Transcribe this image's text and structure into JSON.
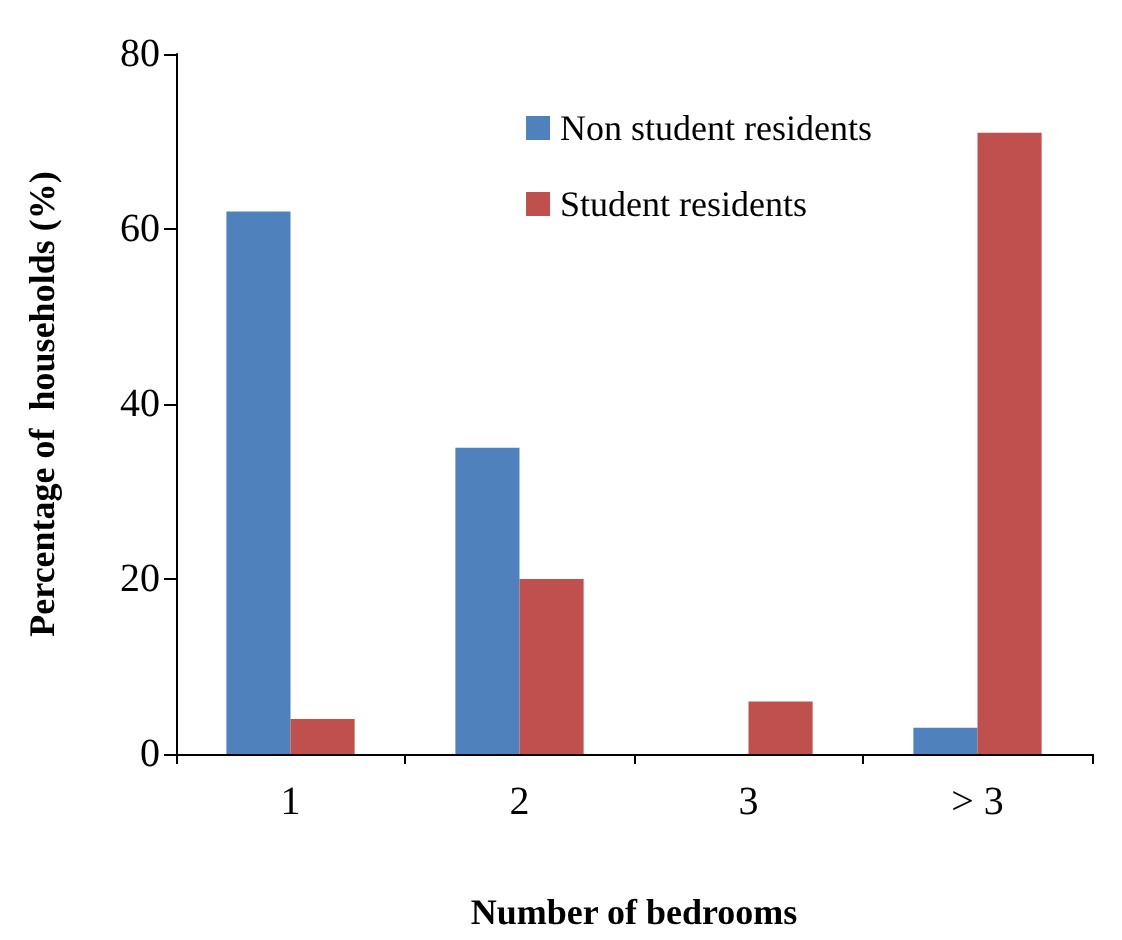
{
  "chart_data": {
    "type": "bar",
    "xlabel": "Number of bedrooms",
    "ylabel": "Percentage of  households (%)",
    "categories": [
      "1",
      "2",
      "3",
      "> 3"
    ],
    "series": [
      {
        "name": "Non student residents",
        "color": "#4f81bd",
        "values": [
          62,
          35,
          0,
          3
        ]
      },
      {
        "name": "Student residents",
        "color": "#c0504d",
        "values": [
          4,
          20,
          6,
          71
        ]
      }
    ],
    "ylim": [
      0,
      80
    ],
    "yticks": [
      0,
      20,
      40,
      60,
      80
    ],
    "grid": false,
    "legend": "top right"
  }
}
